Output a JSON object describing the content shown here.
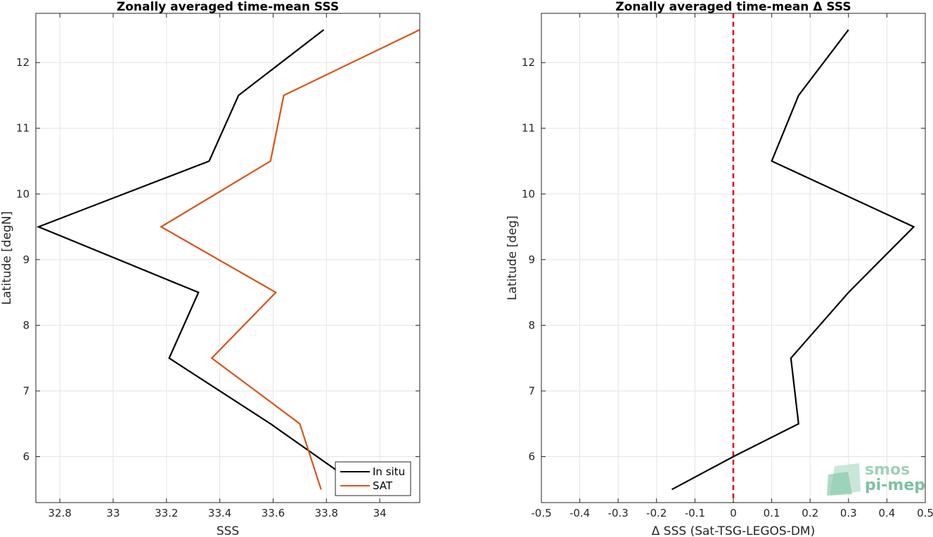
{
  "chart_data": [
    {
      "type": "line",
      "title": "Zonally averaged time-mean SSS",
      "xlabel": "SSS",
      "ylabel": "Latitude [degN]",
      "xlim": [
        32.71,
        34.15
      ],
      "ylim": [
        5.3,
        12.75
      ],
      "xticks": [
        32.8,
        33,
        33.2,
        33.4,
        33.6,
        33.8,
        34
      ],
      "xtick_labels": [
        "32.8",
        "33",
        "33.2",
        "33.4",
        "33.6",
        "33.8",
        "34"
      ],
      "yticks": [
        6,
        7,
        8,
        9,
        10,
        11,
        12
      ],
      "ytick_labels": [
        "6",
        "7",
        "8",
        "9",
        "10",
        "11",
        "12"
      ],
      "grid": true,
      "legend": {
        "position": "bottom-right"
      },
      "series": [
        {
          "name": "In situ",
          "color": "#000000",
          "lat": [
            5.5,
            6.5,
            7.5,
            8.5,
            9.5,
            10.5,
            11.5,
            12.5
          ],
          "values": [
            33.94,
            33.59,
            33.21,
            33.32,
            32.72,
            33.36,
            33.47,
            33.79
          ]
        },
        {
          "name": "SAT",
          "color": "#d95319",
          "lat": [
            5.5,
            6.5,
            7.5,
            8.5,
            9.5,
            10.5,
            11.5,
            12.5
          ],
          "values": [
            33.78,
            33.7,
            33.37,
            33.61,
            33.18,
            33.59,
            33.64,
            34.15
          ]
        }
      ]
    },
    {
      "type": "line",
      "title": "Zonally averaged time-mean Δ SSS",
      "xlabel": "Δ SSS (Sat-TSG-LEGOS-DM)",
      "ylabel": "Latitude [deg]",
      "xlim": [
        -0.5,
        0.5
      ],
      "ylim": [
        5.3,
        12.75
      ],
      "xticks": [
        -0.5,
        -0.4,
        -0.3,
        -0.2,
        -0.1,
        0,
        0.1,
        0.2,
        0.3,
        0.4,
        0.5
      ],
      "xtick_labels": [
        "-0.5",
        "-0.4",
        "-0.3",
        "-0.2",
        "-0.1",
        "0",
        "0.1",
        "0.2",
        "0.3",
        "0.4",
        "0.5"
      ],
      "yticks": [
        6,
        7,
        8,
        9,
        10,
        11,
        12
      ],
      "ytick_labels": [
        "6",
        "7",
        "8",
        "9",
        "10",
        "11",
        "12"
      ],
      "grid": true,
      "reference_line": {
        "x": 0,
        "color": "#e8000b",
        "style": "dashed"
      },
      "series": [
        {
          "color": "#000000",
          "lat": [
            5.5,
            6.0,
            6.5,
            7.5,
            8.5,
            9.5,
            10.5,
            11.5,
            12.5
          ],
          "values": [
            -0.16,
            0.0,
            0.17,
            0.15,
            0.3,
            0.47,
            0.1,
            0.17,
            0.3
          ]
        }
      ]
    }
  ],
  "logo": {
    "line1": "smos",
    "line2": "pi-mep"
  }
}
